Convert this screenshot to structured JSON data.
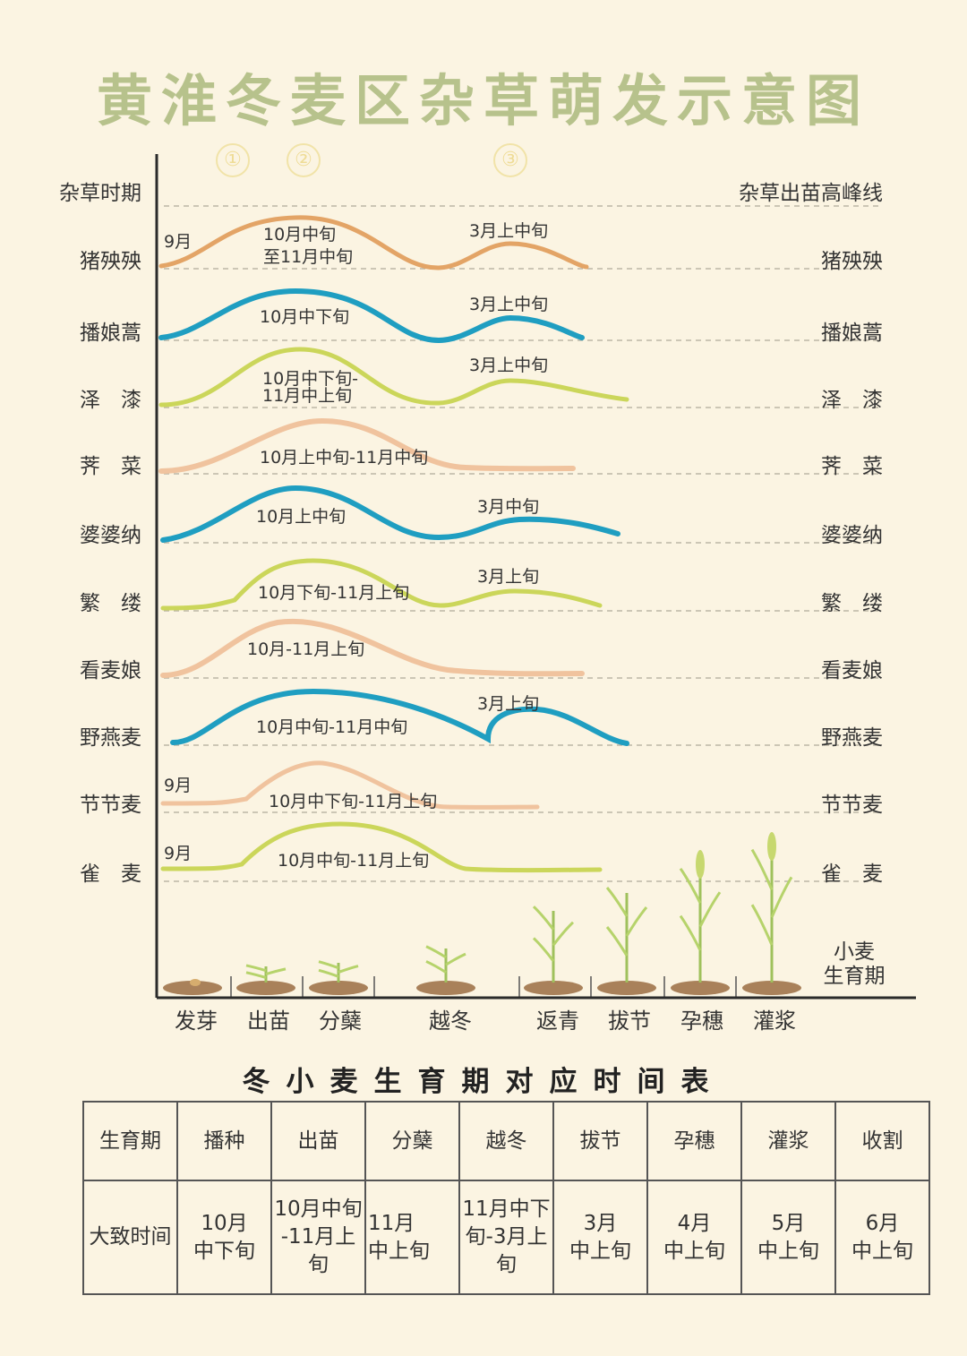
{
  "title": "黄淮冬麦区杂草萌发示意图",
  "markers": [
    "①",
    "②",
    "③"
  ],
  "header_left": "杂草时期",
  "header_right": "杂草出苗高峰线",
  "weeds": [
    {
      "name": "猪殃殃",
      "color": "#e3a466",
      "labels": [
        "9月",
        "10月中旬",
        "至11月中旬",
        "3月上中旬"
      ]
    },
    {
      "name": "播娘蒿",
      "color": "#1f9ec1",
      "labels": [
        "10月中下旬",
        "3月上中旬"
      ]
    },
    {
      "name": "泽　漆",
      "color": "#cbd65a",
      "labels": [
        "10月中下旬-",
        "11月中上旬",
        "3月上中旬"
      ]
    },
    {
      "name": "荠　菜",
      "color": "#f0c39e",
      "labels": [
        "10月上中旬-11月中旬"
      ]
    },
    {
      "name": "婆婆纳",
      "color": "#1f9ec1",
      "labels": [
        "10月上中旬",
        "3月中旬"
      ]
    },
    {
      "name": "繁　缕",
      "color": "#cbd65a",
      "labels": [
        "10月下旬-11月上旬",
        "3月上旬"
      ]
    },
    {
      "name": "看麦娘",
      "color": "#f0c39e",
      "labels": [
        "10月-11月上旬"
      ]
    },
    {
      "name": "野燕麦",
      "color": "#1f9ec1",
      "labels": [
        "10月中旬-11月中旬",
        "3月上旬"
      ]
    },
    {
      "name": "节节麦",
      "color": "#f0c39e",
      "labels": [
        "9月",
        "10月中下旬-11月上旬"
      ]
    },
    {
      "name": "雀　麦",
      "color": "#cbd65a",
      "labels": [
        "9月",
        "10月中旬-11月上旬"
      ]
    }
  ],
  "stages": [
    "发芽",
    "出苗",
    "分蘖",
    "越冬",
    "返青",
    "拔节",
    "孕穗",
    "灌浆"
  ],
  "growth_label_1": "小麦",
  "growth_label_2": "生育期",
  "table": {
    "title": "冬小麦生育期对应时间表",
    "header": [
      "生育期",
      "播种",
      "出苗",
      "分蘖",
      "越冬",
      "拔节",
      "孕穗",
      "灌浆",
      "收割"
    ],
    "row": [
      "大致时间",
      "10月\n中下旬",
      "10月中旬\n-11月上旬",
      "11月\n中上旬",
      "11月中下\n旬-3月上\n旬",
      "3月\n中上旬",
      "4月\n中上旬",
      "5月\n中上旬",
      "6月\n中上旬"
    ]
  }
}
